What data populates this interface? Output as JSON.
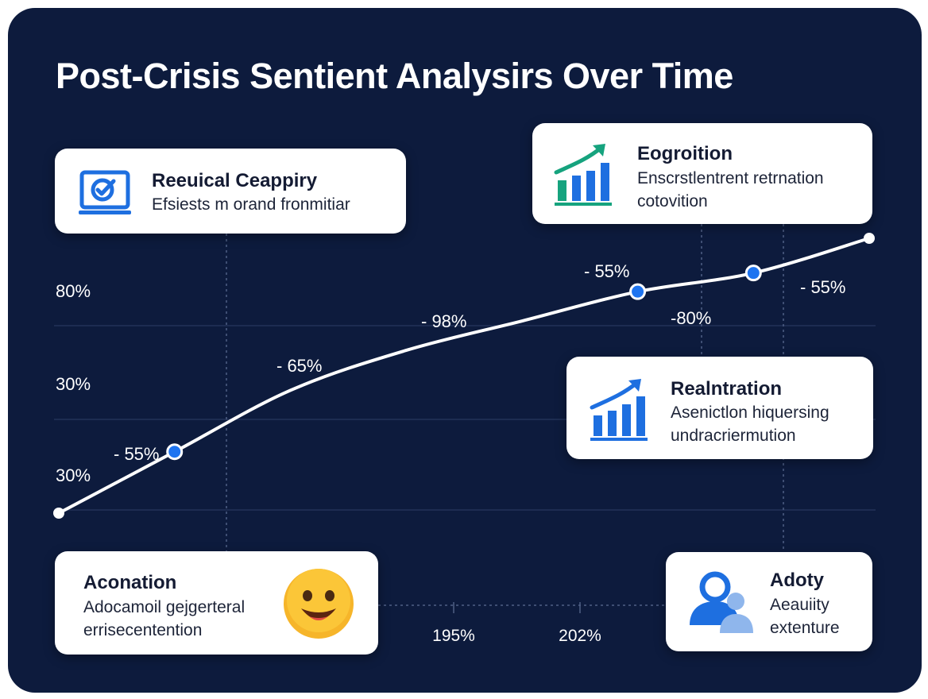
{
  "title": "Post-Crisis Sentient Analysirs Over Time",
  "colors": {
    "background": "#0d1b3d",
    "line": "#ffffff",
    "marker": "#1e74f0",
    "card": "#ffffff",
    "icon_blue": "#1e6fe0",
    "icon_teal": "#16a37e",
    "emoji": "#f6b52a"
  },
  "chart_data": {
    "type": "line",
    "y_tick_labels": [
      "80%",
      "30%",
      "30%"
    ],
    "x_tick_labels": [
      "195%",
      "202%"
    ],
    "grid": true,
    "series": [
      {
        "points": [
          {
            "x": 0,
            "y": 20
          },
          {
            "x": 1,
            "y": 43
          },
          {
            "x": 2,
            "y": 66
          },
          {
            "x": 3,
            "y": 81
          },
          {
            "x": 4,
            "y": 92
          },
          {
            "x": 5,
            "y": 103
          },
          {
            "x": 6,
            "y": 110
          },
          {
            "x": 7,
            "y": 123
          }
        ],
        "markers": [
          {
            "x": 1,
            "y": 43
          },
          {
            "x": 5,
            "y": 103
          },
          {
            "x": 6,
            "y": 110
          }
        ]
      }
    ],
    "data_labels": [
      "- 55%",
      "- 65%",
      "- 98%",
      "- 55%",
      "-80%",
      "- 55%"
    ]
  },
  "cards": [
    {
      "title": "Reeuical Ceappiry",
      "lines": [
        "Efsiests m orand fronmitiar"
      ],
      "icon": "monitor-check-icon"
    },
    {
      "title": "Eogroition",
      "lines": [
        "Enscrstlentrent retrnation",
        "cotovition"
      ],
      "icon": "growth-chart-icon"
    },
    {
      "title": "Realntration",
      "lines": [
        "Asenictlon hiquersing",
        "undracriermution"
      ],
      "icon": "growth-chart-icon"
    },
    {
      "title": "Aconation",
      "lines": [
        "Adocamoil gejgerteral",
        "errisecentention"
      ],
      "icon": "smiley-face-icon"
    },
    {
      "title": "Adoty",
      "lines": [
        "Aeauiity",
        "extenture"
      ],
      "icon": "user-group-icon"
    }
  ]
}
